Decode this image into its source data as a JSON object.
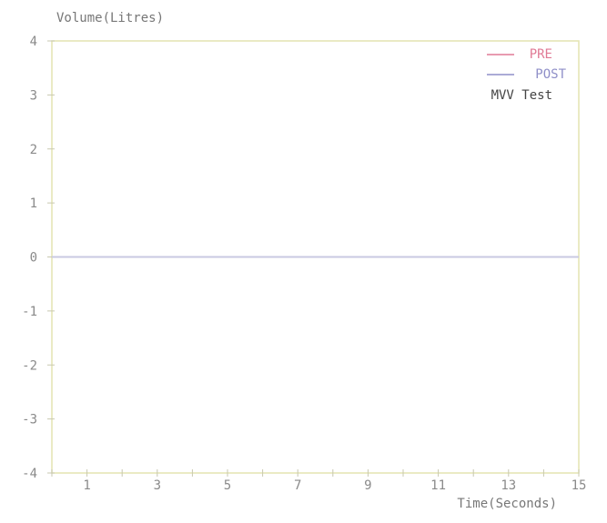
{
  "chart_data": {
    "type": "line",
    "title": "",
    "ylabel": "Volume(Litres)",
    "xlabel": "Time(Seconds)",
    "xlim": [
      0,
      15
    ],
    "ylim": [
      -4,
      4
    ],
    "x_tick_labels": [
      "1",
      "3",
      "5",
      "7",
      "9",
      "11",
      "13",
      "15"
    ],
    "y_tick_labels": [
      "4",
      "3",
      "2",
      "1",
      "0",
      "-1",
      "-2",
      "-3",
      "-4"
    ],
    "legend_position": "top-right",
    "series": [
      {
        "name": "PRE",
        "color": "#e07a95",
        "values": []
      },
      {
        "name": "POST",
        "color": "#8f8fc8",
        "values": []
      }
    ],
    "annotation": "MVV Test",
    "zero_line_color": "#c9c9e2",
    "grid": false
  }
}
